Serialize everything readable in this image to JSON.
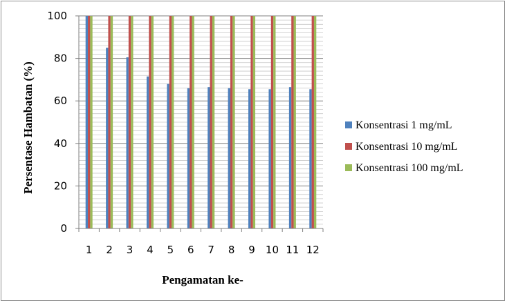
{
  "chart_data": {
    "type": "bar",
    "title": "",
    "xlabel": "Pengamatan ke-",
    "ylabel": "Persentase Hambatan (%)",
    "ylim": [
      0,
      100
    ],
    "yticks": [
      0,
      20,
      40,
      60,
      80,
      100
    ],
    "grid": true,
    "legend_position": "right",
    "categories": [
      "1",
      "2",
      "3",
      "4",
      "5",
      "6",
      "7",
      "8",
      "9",
      "10",
      "11",
      "12"
    ],
    "series": [
      {
        "name": "Konsentrasi 1 mg/mL",
        "color": "#4f81bd",
        "values": [
          100,
          85,
          80.5,
          71.5,
          68,
          66,
          66.5,
          66,
          65.5,
          65.5,
          66.5,
          65.5
        ]
      },
      {
        "name": "Konsentrasi 10 mg/mL",
        "color": "#c0504d",
        "values": [
          100,
          100,
          100,
          100,
          100,
          100,
          100,
          100,
          100,
          100,
          100,
          100
        ]
      },
      {
        "name": "Konsentrasi 100 mg/mL",
        "color": "#9bbb59",
        "values": [
          100,
          100,
          100,
          100,
          100,
          100,
          100,
          100,
          100,
          100,
          100,
          100
        ]
      }
    ]
  }
}
